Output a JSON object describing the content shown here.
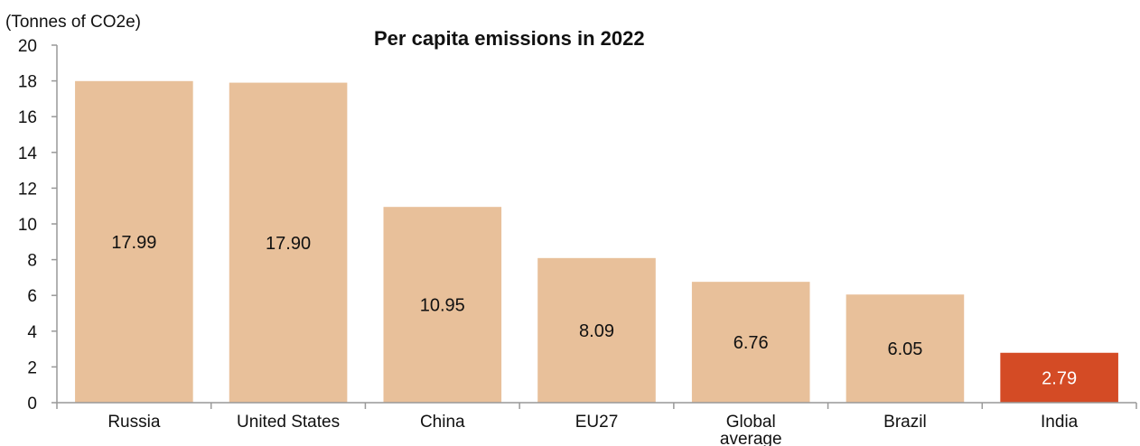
{
  "chart_data": {
    "type": "bar",
    "title": "Per capita emissions in 2022",
    "ylabel": "(Tonnes of CO2e)",
    "xlabel": "",
    "ylim": [
      0,
      20
    ],
    "yticks": [
      0,
      2,
      4,
      6,
      8,
      10,
      12,
      14,
      16,
      18,
      20
    ],
    "categories": [
      "Russia",
      "United States",
      "China",
      "EU27",
      "Global average",
      "Brazil",
      "India"
    ],
    "values": [
      17.99,
      17.9,
      10.95,
      8.09,
      6.76,
      6.05,
      2.79
    ],
    "data_labels": [
      "17.99",
      "17.90",
      "10.95",
      "8.09",
      "6.76",
      "6.05",
      "2.79"
    ],
    "grid": false,
    "legend": "none",
    "colors": {
      "default_bar": "#E8C09A",
      "highlight_bar": "#D44B25",
      "highlight_label": "#ffffff",
      "label": "#111111",
      "axis": "#999999"
    },
    "highlight_category": "India"
  }
}
